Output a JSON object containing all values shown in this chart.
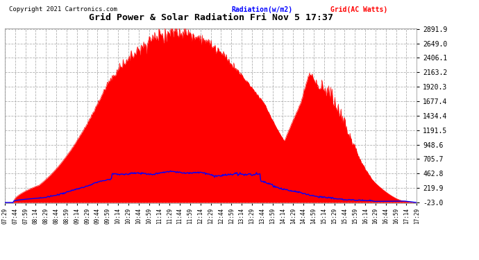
{
  "title": "Grid Power & Solar Radiation Fri Nov 5 17:37",
  "copyright": "Copyright 2021 Cartronics.com",
  "legend_radiation": "Radiation(w/m2)",
  "legend_grid": "Grid(AC Watts)",
  "yticks": [
    2891.9,
    2649.0,
    2406.1,
    2163.2,
    1920.3,
    1677.4,
    1434.4,
    1191.5,
    948.6,
    705.7,
    462.8,
    219.9,
    -23.0
  ],
  "ymin": -23.0,
  "ymax": 2891.9,
  "background_color": "#ffffff",
  "plot_bg_color": "#ffffff",
  "grid_color": "#b0b0b0",
  "fill_color": "#ff0000",
  "line_color_radiation": "#0000ff",
  "line_color_grid": "#ff0000",
  "title_color": "#000000",
  "copyright_color": "#000000",
  "n_points": 600,
  "xtick_labels": [
    "07:29",
    "07:44",
    "07:59",
    "08:14",
    "08:29",
    "08:44",
    "08:59",
    "09:14",
    "09:29",
    "09:44",
    "09:59",
    "10:14",
    "10:29",
    "10:44",
    "10:59",
    "11:14",
    "11:29",
    "11:44",
    "11:59",
    "12:14",
    "12:29",
    "12:44",
    "12:59",
    "13:14",
    "13:29",
    "13:44",
    "13:59",
    "14:14",
    "14:29",
    "14:44",
    "14:59",
    "15:14",
    "15:29",
    "15:44",
    "15:59",
    "16:14",
    "16:29",
    "16:44",
    "16:59",
    "17:14",
    "17:29"
  ]
}
